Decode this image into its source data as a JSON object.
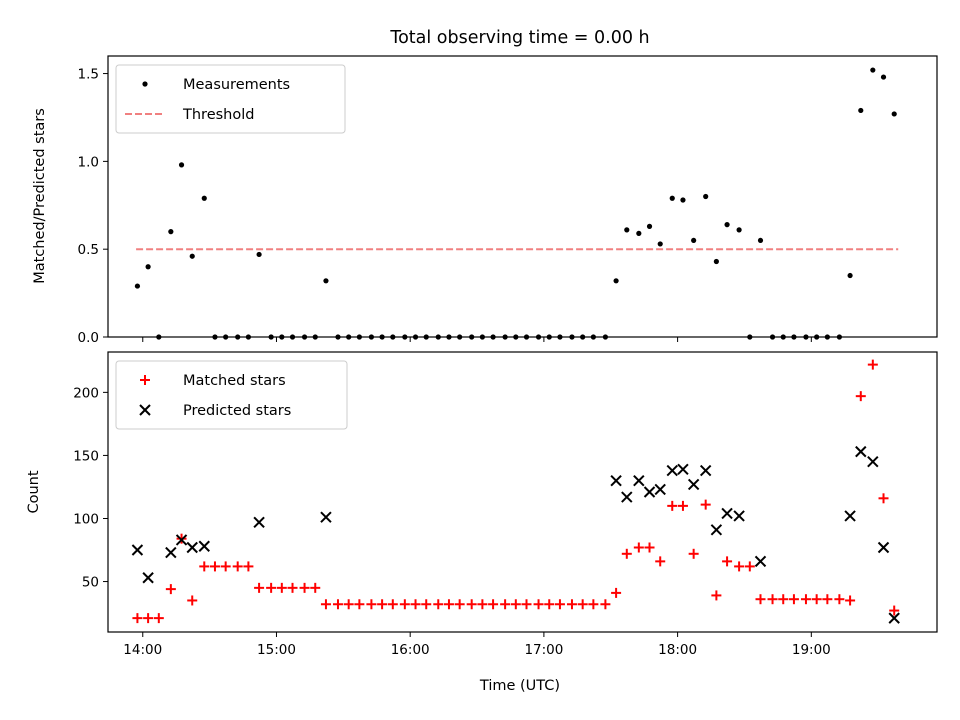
{
  "chart_data": [
    {
      "type": "scatter",
      "title": "Total observing time = 0.00 h",
      "ylabel": "Matched/Predicted stars",
      "xlabel": "",
      "xlim": [
        13.74,
        19.94
      ],
      "ylim": [
        0,
        1.6
      ],
      "yticks": [
        0.0,
        0.5,
        1.0,
        1.5
      ],
      "ytick_labels": [
        "0.0",
        "0.5",
        "1.0",
        "1.5"
      ],
      "xticks": [
        14,
        15,
        16,
        17,
        18,
        19
      ],
      "legend": "top-left",
      "legend_entries": [
        {
          "label": "Measurements",
          "marker": "dot",
          "color": "#000000"
        },
        {
          "label": "Threshold",
          "marker": "dash",
          "color": "#f08080"
        }
      ],
      "threshold": {
        "value": 0.5,
        "x_start": 13.95,
        "x_end": 19.65,
        "color": "#f08080"
      },
      "series": [
        {
          "name": "Measurements",
          "marker": "dot",
          "color": "#000000",
          "points": [
            [
              13.96,
              0.29
            ],
            [
              14.04,
              0.4
            ],
            [
              14.12,
              0.0
            ],
            [
              14.21,
              0.6
            ],
            [
              14.29,
              0.98
            ],
            [
              14.37,
              0.46
            ],
            [
              14.46,
              0.79
            ],
            [
              14.54,
              0.0
            ],
            [
              14.62,
              0.0
            ],
            [
              14.71,
              0.0
            ],
            [
              14.79,
              0.0
            ],
            [
              14.87,
              0.47
            ],
            [
              14.96,
              0.0
            ],
            [
              15.04,
              0.0
            ],
            [
              15.12,
              0.0
            ],
            [
              15.21,
              0.0
            ],
            [
              15.29,
              0.0
            ],
            [
              15.37,
              0.32
            ],
            [
              15.46,
              0.0
            ],
            [
              15.54,
              0.0
            ],
            [
              15.62,
              0.0
            ],
            [
              15.71,
              0.0
            ],
            [
              15.79,
              0.0
            ],
            [
              15.87,
              0.0
            ],
            [
              15.96,
              0.0
            ],
            [
              16.04,
              0.0
            ],
            [
              16.12,
              0.0
            ],
            [
              16.21,
              0.0
            ],
            [
              16.29,
              0.0
            ],
            [
              16.37,
              0.0
            ],
            [
              16.46,
              0.0
            ],
            [
              16.54,
              0.0
            ],
            [
              16.62,
              0.0
            ],
            [
              16.71,
              0.0
            ],
            [
              16.79,
              0.0
            ],
            [
              16.87,
              0.0
            ],
            [
              16.96,
              0.0
            ],
            [
              17.04,
              0.0
            ],
            [
              17.12,
              0.0
            ],
            [
              17.21,
              0.0
            ],
            [
              17.29,
              0.0
            ],
            [
              17.37,
              0.0
            ],
            [
              17.46,
              0.0
            ],
            [
              17.54,
              0.32
            ],
            [
              17.62,
              0.61
            ],
            [
              17.71,
              0.59
            ],
            [
              17.79,
              0.63
            ],
            [
              17.87,
              0.53
            ],
            [
              17.96,
              0.79
            ],
            [
              18.04,
              0.78
            ],
            [
              18.12,
              0.55
            ],
            [
              18.21,
              0.8
            ],
            [
              18.29,
              0.43
            ],
            [
              18.37,
              0.64
            ],
            [
              18.46,
              0.61
            ],
            [
              18.54,
              0.0
            ],
            [
              18.62,
              0.55
            ],
            [
              18.71,
              0.0
            ],
            [
              18.79,
              0.0
            ],
            [
              18.87,
              0.0
            ],
            [
              18.96,
              0.0
            ],
            [
              19.04,
              0.0
            ],
            [
              19.12,
              0.0
            ],
            [
              19.21,
              0.0
            ],
            [
              19.29,
              0.35
            ],
            [
              19.37,
              1.29
            ],
            [
              19.46,
              1.52
            ],
            [
              19.54,
              1.48
            ],
            [
              19.62,
              1.27
            ]
          ]
        }
      ]
    },
    {
      "type": "scatter",
      "title": "",
      "ylabel": "Count",
      "xlabel": "Time (UTC)",
      "xlim": [
        13.74,
        19.94
      ],
      "ylim": [
        10,
        232
      ],
      "yticks": [
        50,
        100,
        150,
        200
      ],
      "ytick_labels": [
        "50",
        "100",
        "150",
        "200"
      ],
      "xticks": [
        14,
        15,
        16,
        17,
        18,
        19
      ],
      "xtick_labels": [
        "14:00",
        "15:00",
        "16:00",
        "17:00",
        "18:00",
        "19:00"
      ],
      "legend": "top-left",
      "legend_entries": [
        {
          "label": "Matched stars",
          "marker": "plus",
          "color": "#ff0000"
        },
        {
          "label": "Predicted stars",
          "marker": "x",
          "color": "#000000"
        }
      ],
      "series": [
        {
          "name": "Matched stars",
          "marker": "plus",
          "color": "#ff0000",
          "points": [
            [
              13.96,
              21
            ],
            [
              14.04,
              21
            ],
            [
              14.12,
              21
            ],
            [
              14.21,
              44
            ],
            [
              14.29,
              84
            ],
            [
              14.37,
              35
            ],
            [
              14.46,
              62
            ],
            [
              14.54,
              62
            ],
            [
              14.62,
              62
            ],
            [
              14.71,
              62
            ],
            [
              14.79,
              62
            ],
            [
              14.87,
              45
            ],
            [
              14.96,
              45
            ],
            [
              15.04,
              45
            ],
            [
              15.12,
              45
            ],
            [
              15.21,
              45
            ],
            [
              15.29,
              45
            ],
            [
              15.37,
              32
            ],
            [
              15.46,
              32
            ],
            [
              15.54,
              32
            ],
            [
              15.62,
              32
            ],
            [
              15.71,
              32
            ],
            [
              15.79,
              32
            ],
            [
              15.87,
              32
            ],
            [
              15.96,
              32
            ],
            [
              16.04,
              32
            ],
            [
              16.12,
              32
            ],
            [
              16.21,
              32
            ],
            [
              16.29,
              32
            ],
            [
              16.37,
              32
            ],
            [
              16.46,
              32
            ],
            [
              16.54,
              32
            ],
            [
              16.62,
              32
            ],
            [
              16.71,
              32
            ],
            [
              16.79,
              32
            ],
            [
              16.87,
              32
            ],
            [
              16.96,
              32
            ],
            [
              17.04,
              32
            ],
            [
              17.12,
              32
            ],
            [
              17.21,
              32
            ],
            [
              17.29,
              32
            ],
            [
              17.37,
              32
            ],
            [
              17.46,
              32
            ],
            [
              17.54,
              41
            ],
            [
              17.62,
              72
            ],
            [
              17.71,
              77
            ],
            [
              17.79,
              77
            ],
            [
              17.87,
              66
            ],
            [
              17.96,
              110
            ],
            [
              18.04,
              110
            ],
            [
              18.12,
              72
            ],
            [
              18.21,
              111
            ],
            [
              18.29,
              39
            ],
            [
              18.37,
              66
            ],
            [
              18.46,
              62
            ],
            [
              18.54,
              62
            ],
            [
              18.62,
              36
            ],
            [
              18.71,
              36
            ],
            [
              18.79,
              36
            ],
            [
              18.87,
              36
            ],
            [
              18.96,
              36
            ],
            [
              19.04,
              36
            ],
            [
              19.12,
              36
            ],
            [
              19.21,
              36
            ],
            [
              19.29,
              35
            ],
            [
              19.37,
              197
            ],
            [
              19.46,
              222
            ],
            [
              19.54,
              116
            ],
            [
              19.62,
              27
            ]
          ]
        },
        {
          "name": "Predicted stars",
          "marker": "x",
          "color": "#000000",
          "points": [
            [
              13.96,
              75
            ],
            [
              14.04,
              53
            ],
            [
              14.21,
              73
            ],
            [
              14.29,
              83
            ],
            [
              14.37,
              77
            ],
            [
              14.46,
              78
            ],
            [
              14.87,
              97
            ],
            [
              15.37,
              101
            ],
            [
              17.54,
              130
            ],
            [
              17.62,
              117
            ],
            [
              17.71,
              130
            ],
            [
              17.79,
              121
            ],
            [
              17.87,
              123
            ],
            [
              17.96,
              138
            ],
            [
              18.04,
              139
            ],
            [
              18.12,
              127
            ],
            [
              18.21,
              138
            ],
            [
              18.29,
              91
            ],
            [
              18.37,
              104
            ],
            [
              18.46,
              102
            ],
            [
              18.62,
              66
            ],
            [
              19.29,
              102
            ],
            [
              19.37,
              153
            ],
            [
              19.46,
              145
            ],
            [
              19.54,
              77
            ],
            [
              19.62,
              21
            ]
          ]
        }
      ]
    }
  ]
}
